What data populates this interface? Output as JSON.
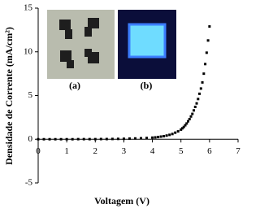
{
  "chart_data": {
    "type": "scatter",
    "x_label": "Voltagem (V)",
    "y_label": "Densidade de Corrente (mA/cm²)",
    "annotations": [
      "(a)",
      "(b)"
    ],
    "x": [
      0,
      0.2,
      0.4,
      0.6,
      0.8,
      1.0,
      1.2,
      1.4,
      1.6,
      1.8,
      2.0,
      2.2,
      2.4,
      2.6,
      2.8,
      3.0,
      3.2,
      3.4,
      3.6,
      3.8,
      4.0,
      4.1,
      4.2,
      4.3,
      4.4,
      4.5,
      4.6,
      4.7,
      4.8,
      4.9,
      5.0,
      5.05,
      5.1,
      5.15,
      5.2,
      5.25,
      5.3,
      5.35,
      5.4,
      5.45,
      5.5,
      5.55,
      5.6,
      5.65,
      5.7,
      5.75,
      5.8,
      5.85,
      5.9,
      5.95,
      6.0
    ],
    "values": [
      0,
      0,
      0,
      0,
      0,
      0,
      0,
      0.01,
      0.01,
      0.01,
      0.01,
      0.02,
      0.02,
      0.03,
      0.04,
      0.05,
      0.07,
      0.09,
      0.11,
      0.14,
      0.18,
      0.21,
      0.25,
      0.3,
      0.35,
      0.42,
      0.5,
      0.6,
      0.75,
      0.9,
      1.1,
      1.25,
      1.4,
      1.6,
      1.8,
      2.05,
      2.3,
      2.6,
      2.9,
      3.3,
      3.7,
      4.1,
      4.6,
      5.2,
      5.8,
      6.5,
      7.5,
      8.6,
      9.9,
      11.3,
      12.9
    ],
    "color": "#000000",
    "xlim": [
      0,
      7
    ],
    "xticks": [
      0,
      1,
      2,
      3,
      4,
      5,
      6,
      7
    ],
    "ylim": [
      -5,
      15
    ],
    "yticks": [
      -5,
      0,
      5,
      10,
      15
    ],
    "grid": false
  }
}
